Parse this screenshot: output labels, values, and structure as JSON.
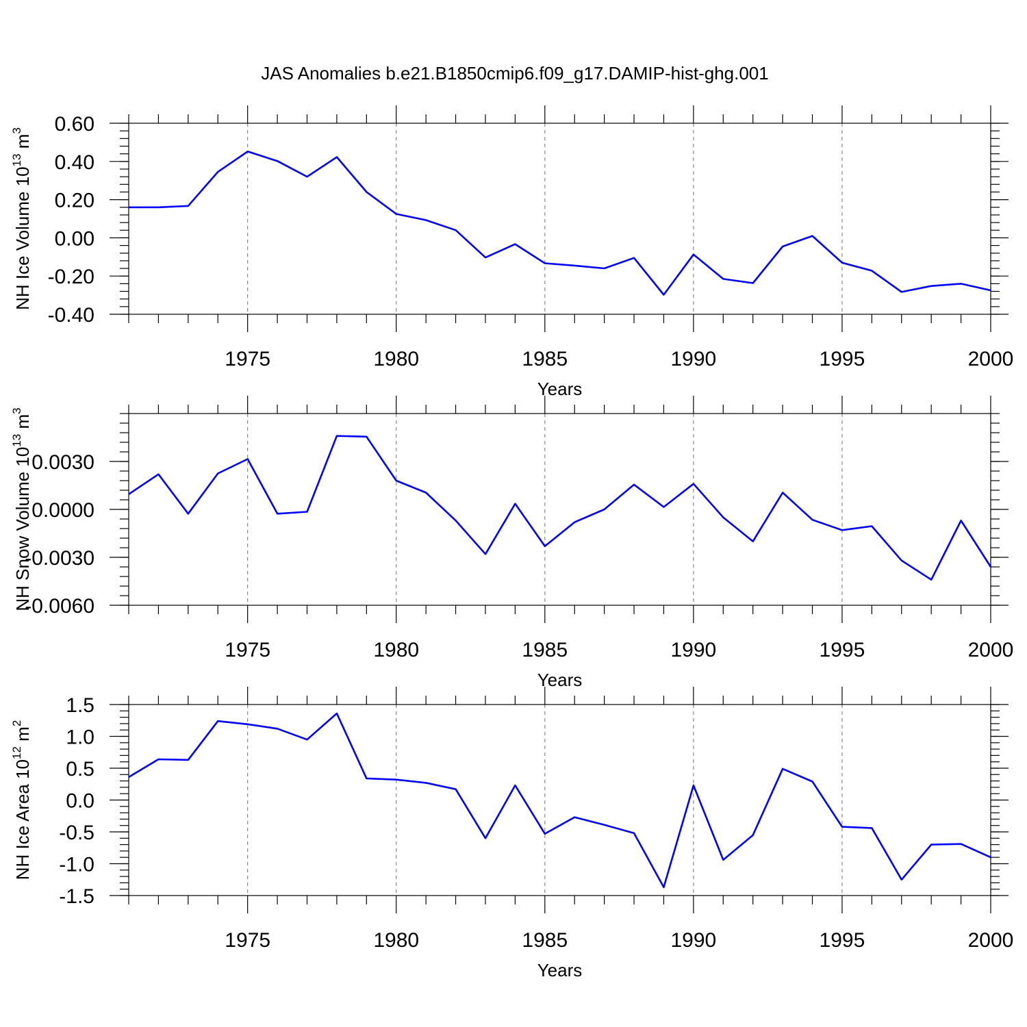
{
  "title": "JAS Anomalies b.e21.B1850cmip6.f09_g17.DAMIP-hist-ghg.001",
  "colors": {
    "line": "#0000ff",
    "grid": "#888888",
    "frame": "#000000"
  },
  "chart_data": [
    {
      "type": "line",
      "xlabel": "Years",
      "ylabel": "NH Ice Volume 10",
      "ylabel_sup": "13",
      "ylabel_unit": " m",
      "ylabel_unit_sup": "3",
      "xlim": [
        1971,
        2000
      ],
      "ylim": [
        -0.4,
        0.6
      ],
      "yticks": [
        -0.4,
        -0.2,
        0.0,
        0.2,
        0.4,
        0.6
      ],
      "ytick_labels": [
        "-0.40",
        "-0.20",
        "0.00",
        "0.20",
        "0.40",
        "0.60"
      ],
      "xticks": [
        1975,
        1980,
        1985,
        1990,
        1995,
        2000
      ],
      "grid_x": true,
      "x": [
        1971,
        1972,
        1973,
        1974,
        1975,
        1976,
        1977,
        1978,
        1979,
        1980,
        1981,
        1982,
        1983,
        1984,
        1985,
        1986,
        1987,
        1988,
        1989,
        1990,
        1991,
        1992,
        1993,
        1994,
        1995,
        1996,
        1997,
        1998,
        1999,
        2000
      ],
      "series": [
        {
          "values": [
            0.16,
            0.16,
            0.167,
            0.345,
            0.452,
            0.402,
            0.32,
            0.423,
            0.24,
            0.125,
            0.093,
            0.04,
            -0.103,
            -0.033,
            -0.133,
            -0.145,
            -0.16,
            -0.105,
            -0.298,
            -0.087,
            -0.215,
            -0.237,
            -0.045,
            0.01,
            -0.13,
            -0.172,
            -0.283,
            -0.252,
            -0.24,
            -0.275
          ]
        }
      ]
    },
    {
      "type": "line",
      "xlabel": "Years",
      "ylabel": "NH Snow Volume 10",
      "ylabel_sup": "13",
      "ylabel_unit": " m",
      "ylabel_unit_sup": "3",
      "xlim": [
        1971,
        2000
      ],
      "ylim": [
        -0.006,
        0.006
      ],
      "yticks": [
        -0.006,
        -0.003,
        0.0,
        0.003
      ],
      "ytick_labels": [
        "-0.0060",
        "-0.0030",
        "0.0000",
        "0.0030"
      ],
      "xticks": [
        1975,
        1980,
        1985,
        1990,
        1995,
        2000
      ],
      "grid_x": true,
      "x": [
        1971,
        1972,
        1973,
        1974,
        1975,
        1976,
        1977,
        1978,
        1979,
        1980,
        1981,
        1982,
        1983,
        1984,
        1985,
        1986,
        1987,
        1988,
        1989,
        1990,
        1991,
        1992,
        1993,
        1994,
        1995,
        1996,
        1997,
        1998,
        1999,
        2000
      ],
      "series": [
        {
          "values": [
            0.00095,
            0.0022,
            -0.00027,
            0.00225,
            0.00315,
            -0.00027,
            -0.00015,
            0.0046,
            0.00455,
            0.0018,
            0.00105,
            -0.0007,
            -0.0028,
            0.00035,
            -0.0023,
            -0.0008,
            0.0,
            0.00155,
            0.00015,
            0.0016,
            -0.0005,
            -0.002,
            0.00105,
            -0.00065,
            -0.0013,
            -0.00105,
            -0.0032,
            -0.0044,
            -0.0007,
            -0.0036
          ]
        }
      ]
    },
    {
      "type": "line",
      "xlabel": "Years",
      "ylabel": "NH Ice Area 10",
      "ylabel_sup": "12",
      "ylabel_unit": " m",
      "ylabel_unit_sup": "2",
      "xlim": [
        1971,
        2000
      ],
      "ylim": [
        -1.5,
        1.5
      ],
      "yticks": [
        -1.5,
        -1.0,
        -0.5,
        0.0,
        0.5,
        1.0,
        1.5
      ],
      "ytick_labels": [
        "-1.5",
        "-1.0",
        "-0.5",
        "0.0",
        "0.5",
        "1.0",
        "1.5"
      ],
      "xticks": [
        1975,
        1980,
        1985,
        1990,
        1995,
        2000
      ],
      "grid_x": true,
      "x": [
        1971,
        1972,
        1973,
        1974,
        1975,
        1976,
        1977,
        1978,
        1979,
        1980,
        1981,
        1982,
        1983,
        1984,
        1985,
        1986,
        1987,
        1988,
        1989,
        1990,
        1991,
        1992,
        1993,
        1994,
        1995,
        1996,
        1997,
        1998,
        1999,
        2000
      ],
      "series": [
        {
          "values": [
            0.36,
            0.64,
            0.63,
            1.24,
            1.19,
            1.12,
            0.95,
            1.36,
            0.34,
            0.32,
            0.27,
            0.17,
            -0.6,
            0.23,
            -0.53,
            -0.27,
            -0.39,
            -0.52,
            -1.37,
            0.23,
            -0.94,
            -0.55,
            0.49,
            0.29,
            -0.42,
            -0.44,
            -1.25,
            -0.7,
            -0.69,
            -0.9
          ]
        }
      ]
    }
  ]
}
